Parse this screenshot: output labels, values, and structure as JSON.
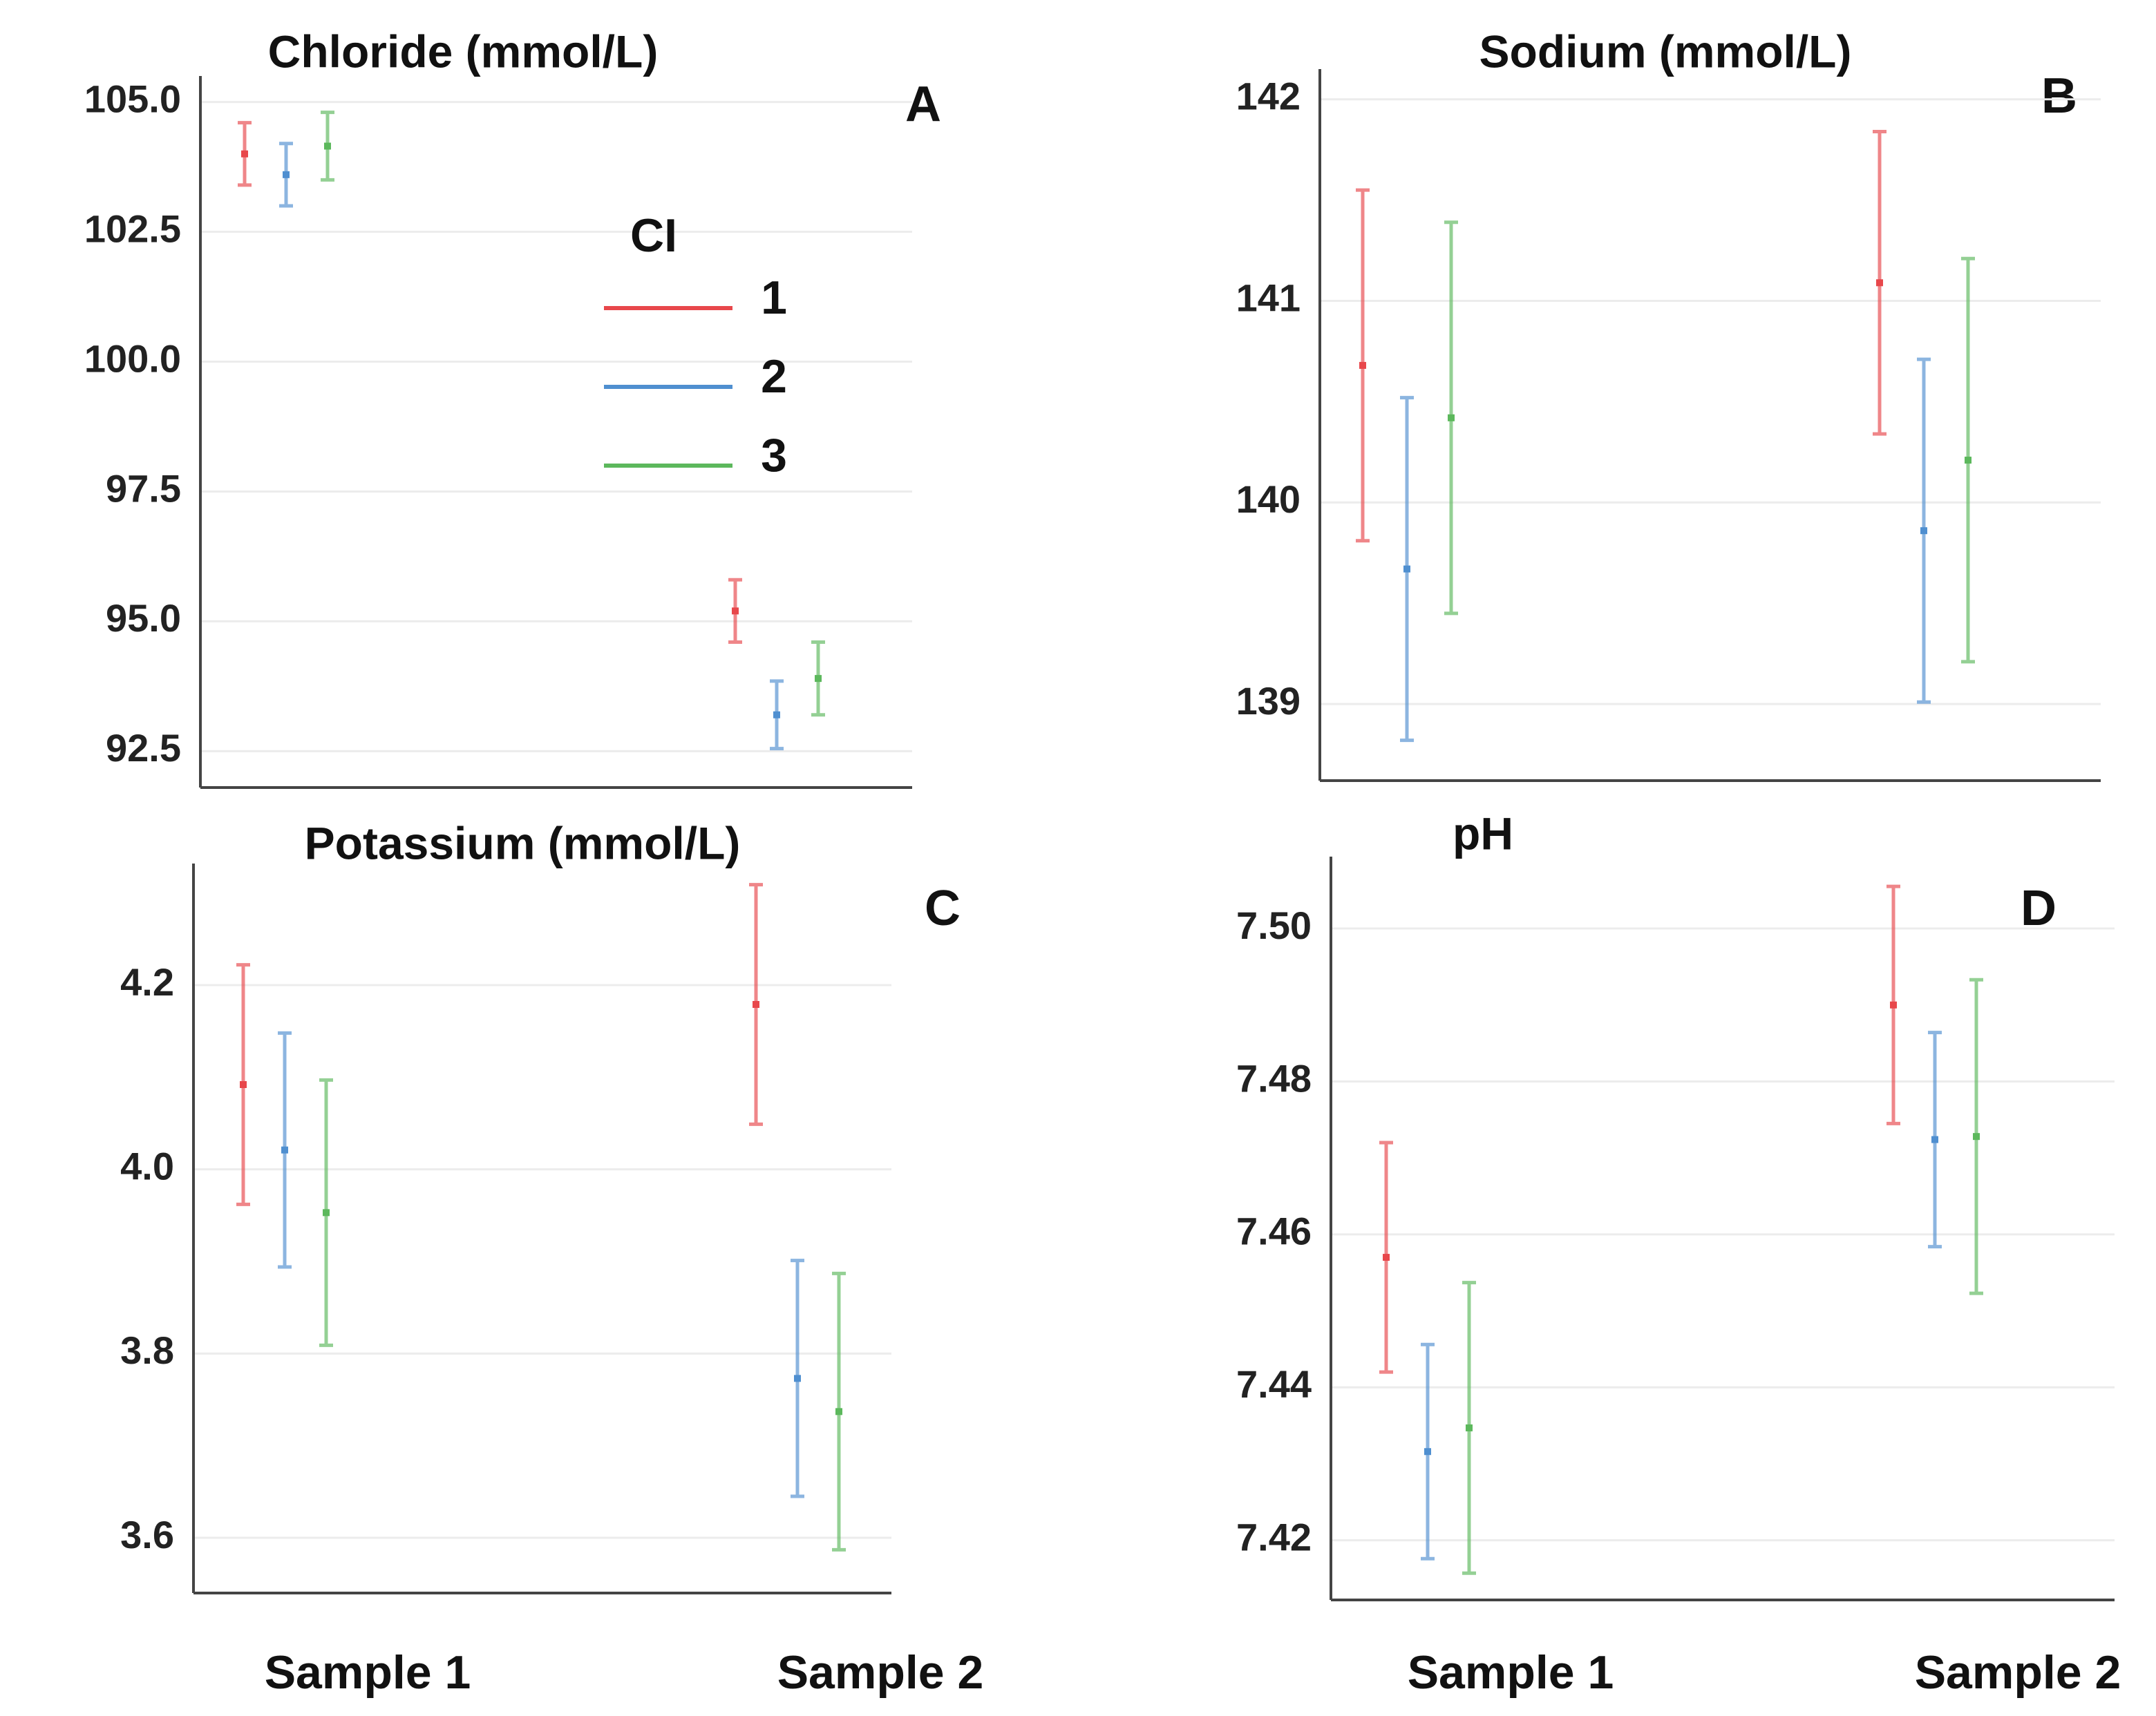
{
  "chart_data": [
    {
      "type": "errorbar",
      "title": "Chloride (mmol/L)",
      "panel_label": "A",
      "categories": [
        null,
        null
      ],
      "ylim": [
        91.8,
        105.5
      ],
      "yticks": [
        92.5,
        {
          "value": 95,
          "label": "95.0"
        },
        97.5,
        {
          "value": 100,
          "label": "100.0"
        },
        102.5,
        {
          "value": 105,
          "label": "105.0"
        }
      ],
      "grid": true,
      "legend": "center right",
      "legend_title": "CI",
      "series": [
        {
          "name": "1",
          "color": "#e8474b",
          "values": [
            104.0,
            95.2
          ],
          "errors": [
            0.6,
            0.6
          ]
        },
        {
          "name": "2",
          "color": "#4f8fd0",
          "values": [
            103.6,
            93.2
          ],
          "errors": [
            0.6,
            0.65
          ]
        },
        {
          "name": "3",
          "color": "#5cb85c",
          "values": [
            104.15,
            93.9
          ],
          "errors": [
            0.65,
            0.7
          ]
        }
      ]
    },
    {
      "type": "errorbar",
      "title": "Sodium (mmol/L)",
      "panel_label": "B",
      "categories": [
        null,
        null
      ],
      "ylim": [
        138.62,
        142.15
      ],
      "yticks": [
        139,
        140,
        141,
        142
      ],
      "grid": true,
      "series": [
        {
          "name": "1",
          "color": "#e8474b",
          "values": [
            140.68,
            141.09
          ],
          "errors": [
            0.87,
            0.75
          ]
        },
        {
          "name": "2",
          "color": "#4f8fd0",
          "values": [
            139.67,
            139.86
          ],
          "errors": [
            0.85,
            0.85
          ]
        },
        {
          "name": "3",
          "color": "#5cb85c",
          "values": [
            140.42,
            140.21
          ],
          "errors": [
            0.97,
            1.0
          ]
        }
      ]
    },
    {
      "type": "errorbar",
      "title": "Potassium (mmol/L)",
      "panel_label": "C",
      "categories": [
        "Sample 1",
        "Sample 2"
      ],
      "ylim": [
        3.54,
        4.332
      ],
      "yticks": [
        3.6,
        3.8,
        {
          "value": 4,
          "label": "4.0"
        },
        4.2
      ],
      "grid": true,
      "series": [
        {
          "name": "1",
          "color": "#e8474b",
          "values": [
            4.092,
            4.179
          ],
          "errors": [
            0.13,
            0.13
          ]
        },
        {
          "name": "2",
          "color": "#4f8fd0",
          "values": [
            4.021,
            3.773
          ],
          "errors": [
            0.127,
            0.128
          ]
        },
        {
          "name": "3",
          "color": "#5cb85c",
          "values": [
            3.953,
            3.737
          ],
          "errors": [
            0.144,
            0.15
          ]
        }
      ]
    },
    {
      "type": "errorbar",
      "title": "pH",
      "panel_label": "D",
      "categories": [
        "Sample 1",
        "Sample 2"
      ],
      "ylim": [
        7.4122,
        7.5094
      ],
      "yticks": [
        7.42,
        7.44,
        7.46,
        7.48,
        {
          "value": 7.5,
          "label": "7.50"
        }
      ],
      "grid": true,
      "series": [
        {
          "name": "1",
          "color": "#e8474b",
          "values": [
            7.457,
            7.49
          ],
          "errors": [
            0.015,
            0.0155
          ]
        },
        {
          "name": "2",
          "color": "#4f8fd0",
          "values": [
            7.4316,
            7.4724
          ],
          "errors": [
            0.014,
            0.014
          ]
        },
        {
          "name": "3",
          "color": "#5cb85c",
          "values": [
            7.4347,
            7.4728
          ],
          "errors": [
            0.019,
            0.0205
          ]
        }
      ]
    }
  ]
}
